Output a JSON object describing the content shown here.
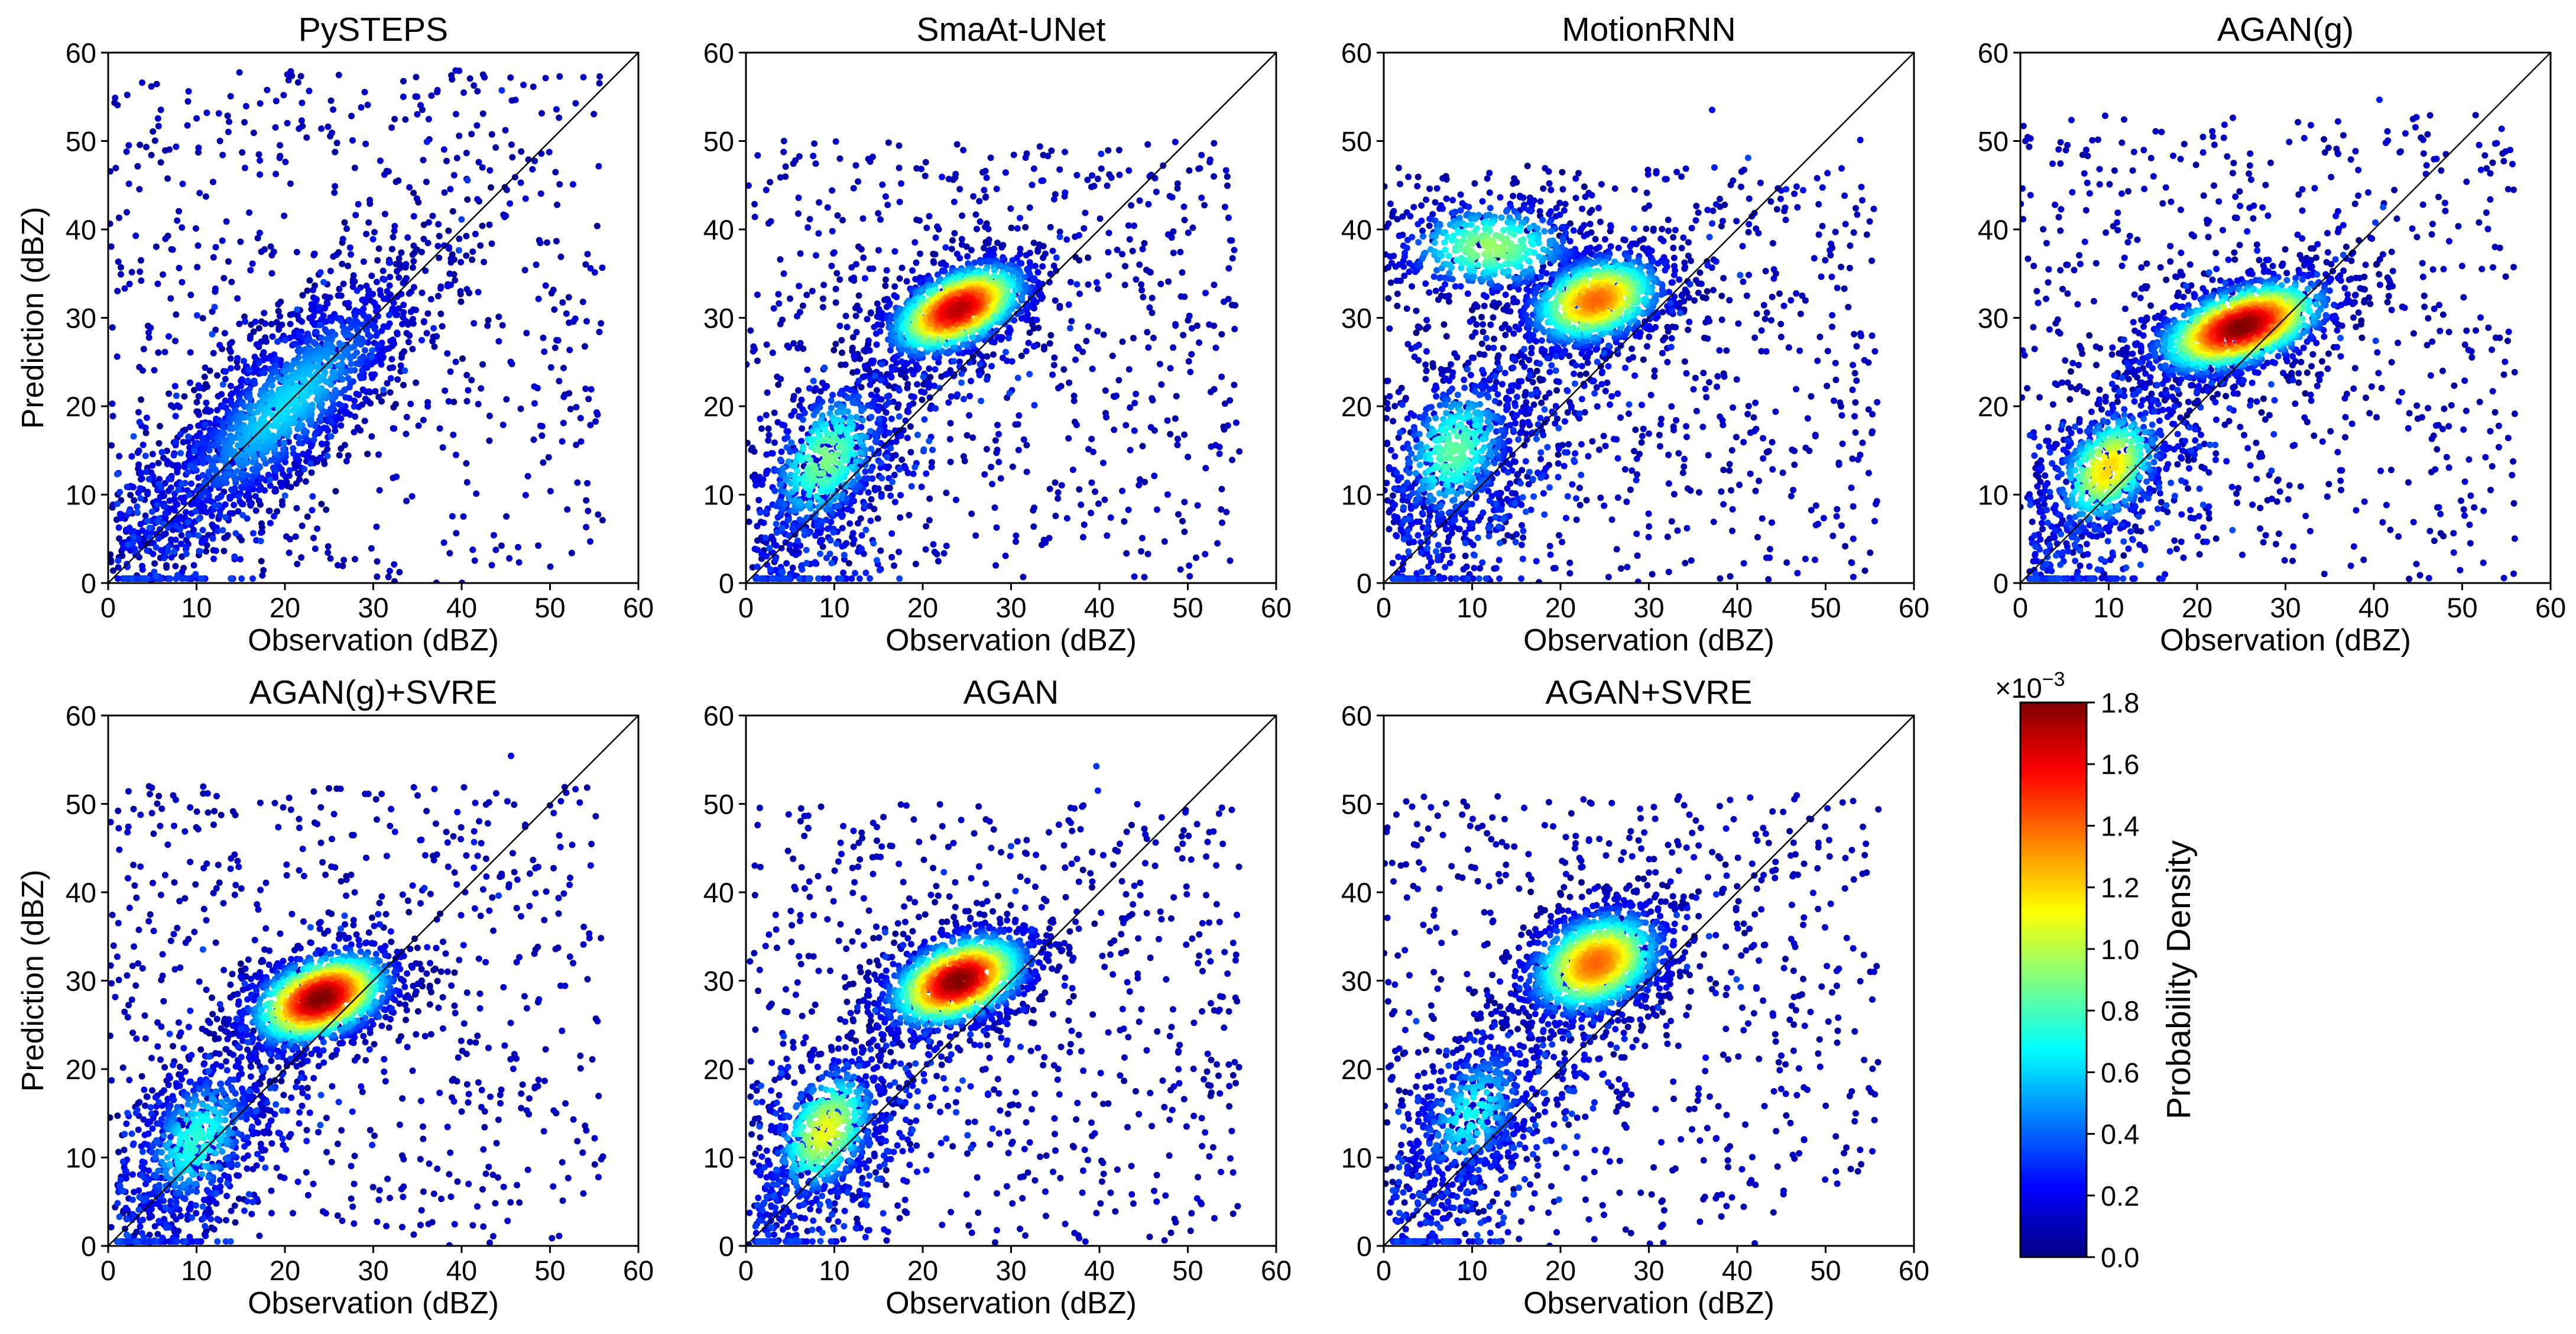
{
  "figure": {
    "description_type": "density scatter grid"
  },
  "colormap": {
    "name": "jet",
    "stops": [
      "#000080",
      "#0000ff",
      "#0080ff",
      "#00ffff",
      "#80ff80",
      "#ffff00",
      "#ff8000",
      "#ff0000",
      "#800000"
    ]
  },
  "colorbar": {
    "label": "Probability Density",
    "multiplier": "×10",
    "exponent": "−3",
    "ticks": [
      "0.0",
      "0.2",
      "0.4",
      "0.6",
      "0.8",
      "1.0",
      "1.2",
      "1.4",
      "1.6",
      "1.8"
    ],
    "range": [
      0.0,
      1.8
    ]
  },
  "chart_data": [
    {
      "type": "scatter",
      "title": "PySTEPS",
      "xlabel": "Observation (dBZ)",
      "ylabel": "Prediction (dBZ)",
      "xlim": [
        0,
        60
      ],
      "ylim": [
        0,
        60
      ],
      "xticks": [
        "0",
        "10",
        "20",
        "30",
        "40",
        "50",
        "60"
      ],
      "yticks": [
        "0",
        "10",
        "20",
        "30",
        "40",
        "50",
        "60"
      ],
      "reference_line": "y = x",
      "density_clusters": [
        {
          "x": 20,
          "y": 20,
          "sx": 8,
          "sy": 8,
          "rho": 0.8,
          "n": 1400,
          "peak": 0.62
        }
      ],
      "scatter_region": {
        "x": [
          0,
          56
        ],
        "y": [
          0,
          58
        ]
      }
    },
    {
      "type": "scatter",
      "title": "SmaAt-UNet",
      "xlabel": "Observation (dBZ)",
      "ylabel": "",
      "xlim": [
        0,
        60
      ],
      "ylim": [
        0,
        60
      ],
      "xticks": [
        "0",
        "10",
        "20",
        "30",
        "40",
        "50",
        "60"
      ],
      "yticks": [
        "0",
        "10",
        "20",
        "30",
        "40",
        "50",
        "60"
      ],
      "reference_line": "y = x",
      "density_clusters": [
        {
          "x": 24,
          "y": 31,
          "sx": 4.5,
          "sy": 3,
          "rho": 0.5,
          "n": 1200,
          "peak": 1.7
        },
        {
          "x": 9,
          "y": 14,
          "sx": 4,
          "sy": 5,
          "rho": 0.4,
          "n": 500,
          "peak": 0.9
        }
      ],
      "scatter_region": {
        "x": [
          0,
          56
        ],
        "y": [
          0,
          50
        ]
      }
    },
    {
      "type": "scatter",
      "title": "MotionRNN",
      "xlabel": "Observation (dBZ)",
      "ylabel": "",
      "xlim": [
        0,
        60
      ],
      "ylim": [
        0,
        60
      ],
      "xticks": [
        "0",
        "10",
        "20",
        "30",
        "40",
        "50",
        "60"
      ],
      "yticks": [
        "0",
        "10",
        "20",
        "30",
        "40",
        "50",
        "60"
      ],
      "reference_line": "y = x",
      "density_clusters": [
        {
          "x": 24,
          "y": 32,
          "sx": 4.5,
          "sy": 3,
          "rho": 0.3,
          "n": 1000,
          "peak": 1.4
        },
        {
          "x": 12,
          "y": 38,
          "sx": 6,
          "sy": 3,
          "rho": 0.0,
          "n": 500,
          "peak": 0.95
        },
        {
          "x": 8,
          "y": 15,
          "sx": 4,
          "sy": 5,
          "rho": 0.3,
          "n": 500,
          "peak": 0.85
        }
      ],
      "scatter_region": {
        "x": [
          0,
          56
        ],
        "y": [
          0,
          47
        ]
      }
    },
    {
      "type": "scatter",
      "title": "AGAN(g)",
      "xlabel": "Observation (dBZ)",
      "ylabel": "",
      "xlim": [
        0,
        60
      ],
      "ylim": [
        0,
        60
      ],
      "xticks": [
        "0",
        "10",
        "20",
        "30",
        "40",
        "50",
        "60"
      ],
      "yticks": [
        "0",
        "10",
        "20",
        "30",
        "40",
        "50",
        "60"
      ],
      "reference_line": "y = x",
      "density_clusters": [
        {
          "x": 25,
          "y": 29,
          "sx": 5.5,
          "sy": 3,
          "rho": 0.5,
          "n": 1400,
          "peak": 1.8
        },
        {
          "x": 10,
          "y": 13,
          "sx": 3.5,
          "sy": 4,
          "rho": 0.4,
          "n": 500,
          "peak": 1.2
        }
      ],
      "scatter_region": {
        "x": [
          0,
          56
        ],
        "y": [
          0,
          53
        ]
      }
    },
    {
      "type": "scatter",
      "title": "AGAN(g)+SVRE",
      "xlabel": "Observation (dBZ)",
      "ylabel": "Prediction (dBZ)",
      "xlim": [
        0,
        60
      ],
      "ylim": [
        0,
        60
      ],
      "xticks": [
        "0",
        "10",
        "20",
        "30",
        "40",
        "50",
        "60"
      ],
      "yticks": [
        "0",
        "10",
        "20",
        "30",
        "40",
        "50",
        "60"
      ],
      "reference_line": "y = x",
      "density_clusters": [
        {
          "x": 24,
          "y": 28,
          "sx": 4.5,
          "sy": 3,
          "rho": 0.4,
          "n": 1300,
          "peak": 1.8
        },
        {
          "x": 10,
          "y": 12,
          "sx": 4,
          "sy": 5,
          "rho": 0.4,
          "n": 500,
          "peak": 0.75
        }
      ],
      "scatter_region": {
        "x": [
          0,
          56
        ],
        "y": [
          0,
          52
        ]
      }
    },
    {
      "type": "scatter",
      "title": "AGAN",
      "xlabel": "Observation (dBZ)",
      "ylabel": "",
      "xlim": [
        0,
        60
      ],
      "ylim": [
        0,
        60
      ],
      "xticks": [
        "0",
        "10",
        "20",
        "30",
        "40",
        "50",
        "60"
      ],
      "yticks": [
        "0",
        "10",
        "20",
        "30",
        "40",
        "50",
        "60"
      ],
      "reference_line": "y = x",
      "density_clusters": [
        {
          "x": 24,
          "y": 30,
          "sx": 4.5,
          "sy": 3,
          "rho": 0.4,
          "n": 1300,
          "peak": 1.8
        },
        {
          "x": 9,
          "y": 13,
          "sx": 3.5,
          "sy": 4.5,
          "rho": 0.4,
          "n": 500,
          "peak": 1.1
        }
      ],
      "scatter_region": {
        "x": [
          0,
          56
        ],
        "y": [
          0,
          50
        ]
      }
    },
    {
      "type": "scatter",
      "title": "AGAN+SVRE",
      "xlabel": "Observation (dBZ)",
      "ylabel": "",
      "xlim": [
        0,
        60
      ],
      "ylim": [
        0,
        60
      ],
      "xticks": [
        "0",
        "10",
        "20",
        "30",
        "40",
        "50",
        "60"
      ],
      "yticks": [
        "0",
        "10",
        "20",
        "30",
        "40",
        "50",
        "60"
      ],
      "reference_line": "y = x",
      "density_clusters": [
        {
          "x": 24,
          "y": 32,
          "sx": 4.5,
          "sy": 3.5,
          "rho": 0.3,
          "n": 1200,
          "peak": 1.4
        },
        {
          "x": 10,
          "y": 15,
          "sx": 4,
          "sy": 5,
          "rho": 0.4,
          "n": 400,
          "peak": 0.7
        }
      ],
      "scatter_region": {
        "x": [
          0,
          56
        ],
        "y": [
          0,
          51
        ]
      }
    }
  ]
}
